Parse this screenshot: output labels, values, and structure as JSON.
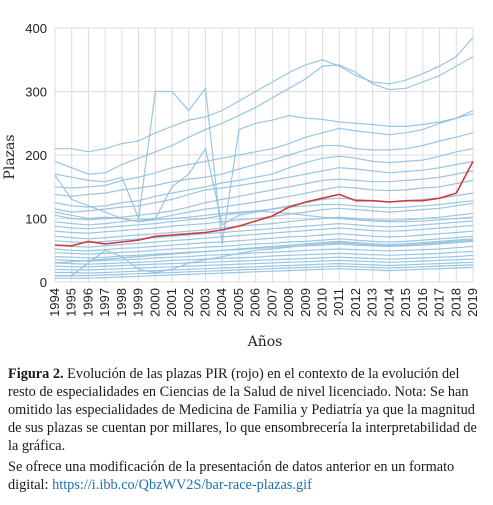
{
  "chart_data": {
    "type": "line",
    "title": "",
    "xlabel": "Años",
    "ylabel": "Plazas",
    "xlim": [
      1994,
      2019
    ],
    "ylim": [
      0,
      400
    ],
    "yticks": [
      0,
      100,
      200,
      300,
      400
    ],
    "xticks": [
      1994,
      1995,
      1996,
      1997,
      1998,
      1999,
      2000,
      2001,
      2002,
      2003,
      2004,
      2005,
      2006,
      2007,
      2008,
      2009,
      2010,
      2011,
      2012,
      2013,
      2014,
      2015,
      2016,
      2017,
      2018,
      2019
    ],
    "grid": true,
    "colors": {
      "background": "#ffffff",
      "grid": "#dcdcdc",
      "highlight": "#cf3a3a",
      "others": "#8ec0e0"
    },
    "x": [
      1994,
      1995,
      1996,
      1997,
      1998,
      1999,
      2000,
      2001,
      2002,
      2003,
      2004,
      2005,
      2006,
      2007,
      2008,
      2009,
      2010,
      2011,
      2012,
      2013,
      2014,
      2015,
      2016,
      2017,
      2018,
      2019
    ],
    "highlight_series": {
      "values": [
        58,
        57,
        64,
        60,
        63,
        66,
        72,
        74,
        76,
        78,
        82,
        88,
        96,
        104,
        118,
        126,
        132,
        138,
        128,
        128,
        126,
        128,
        128,
        132,
        140,
        190
      ]
    },
    "other_series": [
      {
        "values": [
          210,
          210,
          205,
          210,
          218,
          222,
          235,
          245,
          255,
          260,
          270,
          285,
          300,
          315,
          330,
          342,
          350,
          340,
          325,
          315,
          312,
          318,
          328,
          340,
          355,
          385
        ]
      },
      {
        "values": [
          190,
          180,
          170,
          172,
          185,
          195,
          205,
          215,
          228,
          240,
          250,
          262,
          275,
          290,
          305,
          320,
          340,
          342,
          330,
          312,
          303,
          305,
          315,
          325,
          340,
          355
        ]
      },
      {
        "values": [
          170,
          165,
          160,
          158,
          165,
          100,
          300,
          300,
          270,
          305,
          60,
          240,
          250,
          255,
          262,
          258,
          256,
          252,
          250,
          248,
          245,
          245,
          248,
          252,
          258,
          265
        ]
      },
      {
        "values": [
          150,
          148,
          150,
          152,
          160,
          165,
          172,
          180,
          185,
          190,
          195,
          200,
          205,
          210,
          218,
          228,
          235,
          242,
          238,
          235,
          232,
          235,
          240,
          250,
          258,
          270
        ]
      },
      {
        "values": [
          138,
          135,
          138,
          140,
          145,
          148,
          152,
          158,
          162,
          165,
          170,
          178,
          185,
          192,
          200,
          208,
          215,
          215,
          210,
          208,
          208,
          210,
          215,
          222,
          228,
          235
        ]
      },
      {
        "values": [
          125,
          120,
          118,
          120,
          125,
          128,
          135,
          140,
          145,
          150,
          156,
          160,
          165,
          170,
          180,
          188,
          195,
          198,
          195,
          190,
          188,
          190,
          192,
          198,
          205,
          210
        ]
      },
      {
        "values": [
          115,
          110,
          112,
          115,
          118,
          120,
          125,
          130,
          138,
          145,
          148,
          152,
          156,
          160,
          165,
          170,
          175,
          180,
          178,
          175,
          172,
          174,
          176,
          180,
          185,
          190
        ]
      },
      {
        "values": [
          105,
          100,
          98,
          100,
          102,
          105,
          108,
          112,
          118,
          125,
          130,
          135,
          140,
          145,
          150,
          155,
          160,
          162,
          160,
          158,
          158,
          160,
          162,
          165,
          170,
          175
        ]
      },
      {
        "values": [
          95,
          92,
          90,
          92,
          95,
          98,
          100,
          105,
          110,
          115,
          118,
          122,
          126,
          130,
          135,
          140,
          145,
          150,
          148,
          145,
          144,
          145,
          148,
          150,
          155,
          160
        ]
      },
      {
        "values": [
          88,
          85,
          84,
          86,
          88,
          90,
          92,
          95,
          98,
          100,
          105,
          108,
          112,
          115,
          120,
          125,
          130,
          132,
          130,
          128,
          126,
          128,
          130,
          132,
          136,
          140
        ]
      },
      {
        "values": [
          80,
          78,
          77,
          79,
          81,
          83,
          85,
          88,
          90,
          92,
          95,
          98,
          100,
          103,
          107,
          110,
          114,
          116,
          114,
          112,
          110,
          112,
          114,
          116,
          120,
          124
        ]
      },
      {
        "values": [
          72,
          70,
          68,
          70,
          72,
          74,
          76,
          78,
          80,
          82,
          85,
          88,
          90,
          92,
          95,
          98,
          100,
          102,
          100,
          98,
          97,
          98,
          100,
          102,
          105,
          108
        ]
      },
      {
        "values": [
          65,
          63,
          62,
          64,
          66,
          68,
          70,
          72,
          74,
          76,
          78,
          80,
          82,
          84,
          86,
          88,
          90,
          92,
          90,
          88,
          87,
          88,
          90,
          92,
          94,
          96
        ]
      },
      {
        "values": [
          58,
          56,
          55,
          57,
          59,
          61,
          63,
          65,
          67,
          69,
          71,
          73,
          75,
          77,
          79,
          81,
          83,
          85,
          83,
          81,
          80,
          81,
          83,
          85,
          87,
          89
        ]
      },
      {
        "values": [
          52,
          50,
          49,
          51,
          53,
          54,
          56,
          58,
          60,
          62,
          63,
          65,
          67,
          69,
          71,
          72,
          74,
          76,
          74,
          72,
          71,
          72,
          74,
          76,
          78,
          80
        ]
      },
      {
        "values": [
          46,
          45,
          44,
          45,
          47,
          48,
          50,
          52,
          53,
          55,
          56,
          58,
          60,
          61,
          63,
          64,
          66,
          68,
          66,
          64,
          63,
          64,
          66,
          68,
          70,
          72
        ]
      },
      {
        "values": [
          40,
          39,
          38,
          39,
          41,
          42,
          44,
          45,
          47,
          48,
          50,
          51,
          53,
          54,
          56,
          57,
          58,
          60,
          58,
          57,
          56,
          57,
          58,
          60,
          62,
          64
        ]
      },
      {
        "values": [
          35,
          34,
          33,
          34,
          35,
          36,
          38,
          39,
          40,
          42,
          43,
          44,
          46,
          47,
          48,
          50,
          51,
          52,
          51,
          50,
          49,
          50,
          51,
          52,
          54,
          56
        ]
      },
      {
        "values": [
          30,
          29,
          28,
          29,
          30,
          31,
          32,
          34,
          35,
          36,
          37,
          38,
          39,
          41,
          42,
          43,
          44,
          45,
          44,
          43,
          42,
          43,
          44,
          45,
          47,
          48
        ]
      },
      {
        "values": [
          25,
          24,
          24,
          25,
          26,
          27,
          28,
          29,
          30,
          31,
          32,
          33,
          34,
          35,
          36,
          37,
          38,
          39,
          38,
          37,
          36,
          37,
          38,
          39,
          40,
          42
        ]
      },
      {
        "values": [
          20,
          19,
          19,
          20,
          21,
          22,
          23,
          24,
          25,
          26,
          27,
          28,
          29,
          30,
          31,
          32,
          33,
          34,
          33,
          32,
          31,
          32,
          33,
          34,
          35,
          36
        ]
      },
      {
        "values": [
          15,
          15,
          14,
          15,
          16,
          17,
          18,
          19,
          20,
          21,
          22,
          23,
          24,
          25,
          26,
          27,
          28,
          29,
          28,
          27,
          26,
          27,
          28,
          29,
          30,
          31
        ]
      },
      {
        "values": [
          10,
          10,
          10,
          11,
          12,
          13,
          14,
          15,
          16,
          17,
          18,
          19,
          20,
          21,
          22,
          23,
          24,
          25,
          24,
          23,
          22,
          23,
          24,
          25,
          26,
          27
        ]
      },
      {
        "values": [
          6,
          6,
          6,
          7,
          8,
          9,
          10,
          11,
          12,
          13,
          14,
          15,
          16,
          17,
          18,
          19,
          20,
          21,
          20,
          19,
          18,
          19,
          20,
          21,
          22,
          23
        ]
      },
      {
        "values": [
          110,
          105,
          100,
          102,
          100,
          95,
          98,
          100,
          102,
          105,
          108,
          110,
          112,
          110,
          108,
          105,
          102,
          100,
          98,
          96,
          95,
          95,
          96,
          98,
          100,
          102
        ]
      },
      {
        "values": [
          168,
          130,
          120,
          110,
          100,
          95,
          100,
          150,
          170,
          210,
          90,
          105,
          110,
          115,
          118,
          120,
          122,
          122,
          120,
          118,
          117,
          118,
          120,
          122,
          125,
          128
        ]
      },
      {
        "values": [
          10,
          10,
          30,
          50,
          40,
          20,
          15,
          20,
          30,
          35,
          40,
          45,
          50,
          52,
          55,
          58,
          60,
          62,
          60,
          58,
          57,
          58,
          60,
          62,
          64,
          66
        ]
      },
      {
        "values": [
          30,
          32,
          34,
          36,
          38,
          40,
          42,
          44,
          46,
          48,
          50,
          52,
          54,
          56,
          58,
          60,
          62,
          64,
          62,
          60,
          59,
          60,
          62,
          64,
          66,
          68
        ]
      }
    ]
  },
  "caption": {
    "label": "Figura 2.",
    "line1": " Evolución de las plazas PIR (rojo) en el contexto de la evolución del resto de especialidades en Ciencias de la Salud de nivel licenciado. Nota: Se han omitido las especialidades de Medicina de Familia y Pediatría ya que la magnitud de sus plazas se cuentan por millares, lo que ensombrecería la interpretabilidad de la gráfica.",
    "line2": "Se ofrece una modificación de la presentación de datos anterior en un formato digital: ",
    "link": "https://i.ibb.co/QbzWV2S/bar-race-plazas.gif"
  }
}
